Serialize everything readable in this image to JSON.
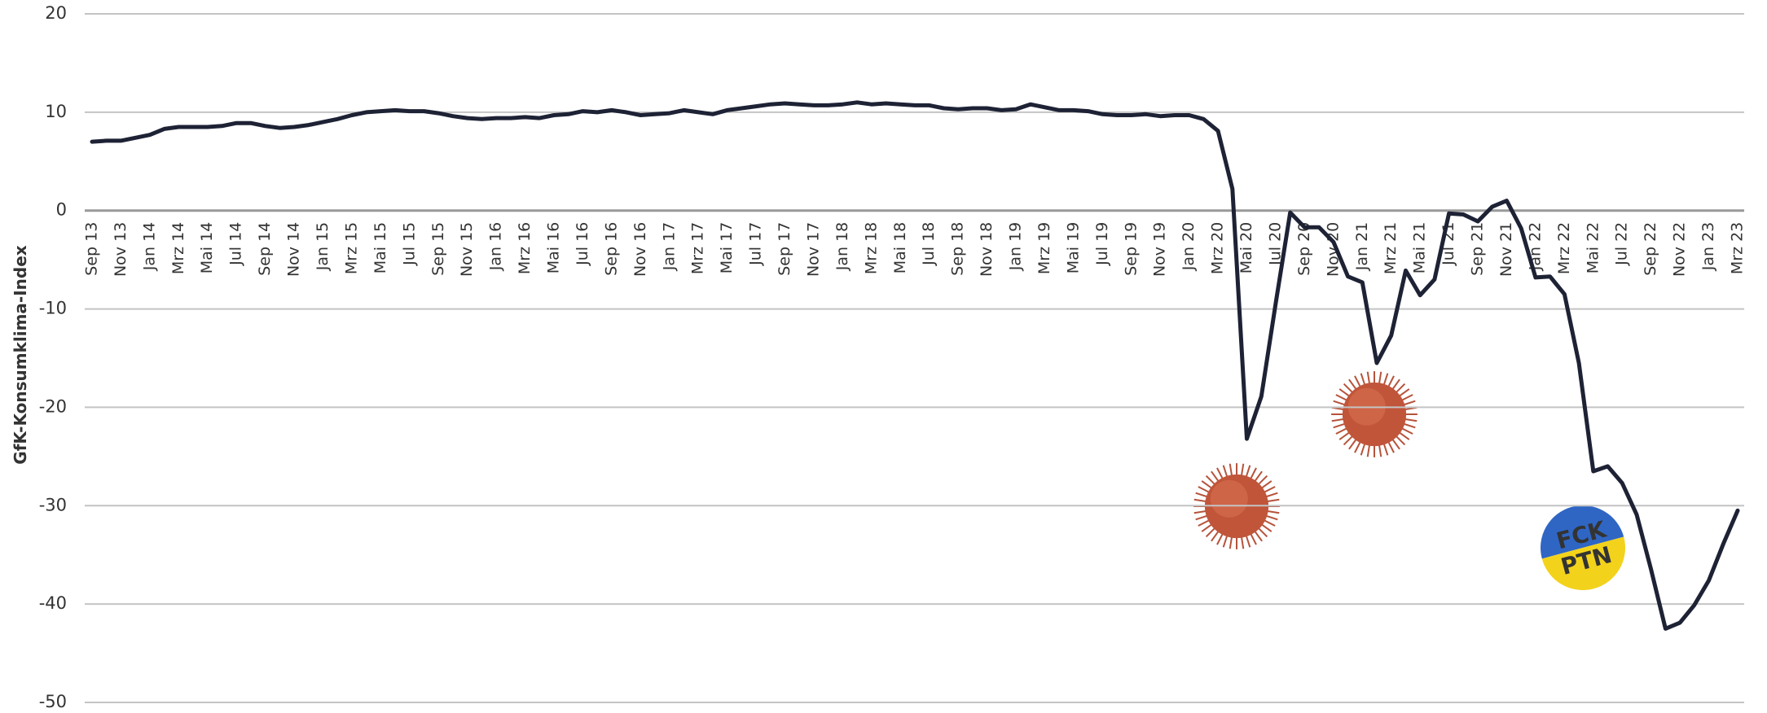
{
  "chart_data": {
    "type": "line",
    "y_label": "GfK-Konsumklima-Index",
    "categories": [
      "Sep 13",
      null,
      "Nov 13",
      null,
      "Jan 14",
      null,
      "Mrz 14",
      null,
      "Mai 14",
      null,
      "Jul 14",
      null,
      "Sep 14",
      null,
      "Nov 14",
      null,
      "Jan 15",
      null,
      "Mrz 15",
      null,
      "Mai 15",
      null,
      "Jul 15",
      null,
      "Sep 15",
      null,
      "Nov 15",
      null,
      "Jan 16",
      null,
      "Mrz 16",
      null,
      "Mai 16",
      null,
      "Jul 16",
      null,
      "Sep 16",
      null,
      "Nov 16",
      null,
      "Jan 17",
      null,
      "Mrz 17",
      null,
      "Mai 17",
      null,
      "Jul 17",
      null,
      "Sep 17",
      null,
      "Nov 17",
      null,
      "Jan 18",
      null,
      "Mrz 18",
      null,
      "Mai 18",
      null,
      "Jul 18",
      null,
      "Sep 18",
      null,
      "Nov 18",
      null,
      "Jan 19",
      null,
      "Mrz 19",
      null,
      "Mai 19",
      null,
      "Jul 19",
      null,
      "Sep 19",
      null,
      "Nov 19",
      null,
      "Jan 20",
      null,
      "Mrz 20",
      null,
      "Mai 20",
      null,
      "Jul 20",
      null,
      "Sep 20",
      null,
      "Nov 20",
      null,
      "Jan 21",
      null,
      "Mrz 21",
      null,
      "Mai 21",
      null,
      "Jul 21",
      null,
      "Sep 21",
      null,
      "Nov 21",
      null,
      "Jan 22",
      null,
      "Mrz 22",
      null,
      "Mai 22",
      null,
      "Jul 22",
      null,
      "Sep 22",
      null,
      "Nov 22",
      null,
      "Jan 23",
      null,
      "Mrz 23"
    ],
    "values": [
      7.0,
      7.1,
      7.1,
      7.4,
      7.7,
      8.3,
      8.5,
      8.5,
      8.5,
      8.6,
      8.9,
      8.9,
      8.6,
      8.4,
      8.5,
      8.7,
      9.0,
      9.3,
      9.7,
      10.0,
      10.1,
      10.2,
      10.1,
      10.1,
      9.9,
      9.6,
      9.4,
      9.3,
      9.4,
      9.4,
      9.5,
      9.4,
      9.7,
      9.8,
      10.1,
      10.0,
      10.2,
      10.0,
      9.7,
      9.8,
      9.9,
      10.2,
      10.0,
      9.8,
      10.2,
      10.4,
      10.6,
      10.8,
      10.9,
      10.8,
      10.7,
      10.7,
      10.8,
      11.0,
      10.8,
      10.9,
      10.8,
      10.7,
      10.7,
      10.4,
      10.3,
      10.4,
      10.4,
      10.2,
      10.3,
      10.8,
      10.5,
      10.2,
      10.2,
      10.1,
      9.8,
      9.7,
      9.7,
      9.8,
      9.6,
      9.7,
      9.7,
      9.3,
      8.1,
      2.2,
      -23.2,
      -18.9,
      -9.4,
      -0.2,
      -1.7,
      -1.7,
      -3.2,
      -6.7,
      -7.3,
      -15.5,
      -12.7,
      -6.1,
      -8.6,
      -7.0,
      -0.3,
      -0.4,
      -1.1,
      0.4,
      1.0,
      -1.8,
      -6.8,
      -6.7,
      -8.5,
      -15.5,
      -26.5,
      -26.0,
      -27.7,
      -30.9,
      -36.5,
      -42.5,
      -41.9,
      -40.1,
      -37.6,
      -33.9,
      -30.5
    ],
    "color": "#1e2235",
    "ylim": [
      -50,
      20
    ],
    "yticks": [
      -50,
      -40,
      -30,
      -20,
      -10,
      0,
      10,
      20
    ],
    "grid": true,
    "annotations": [
      "FCK",
      "PTN"
    ]
  }
}
